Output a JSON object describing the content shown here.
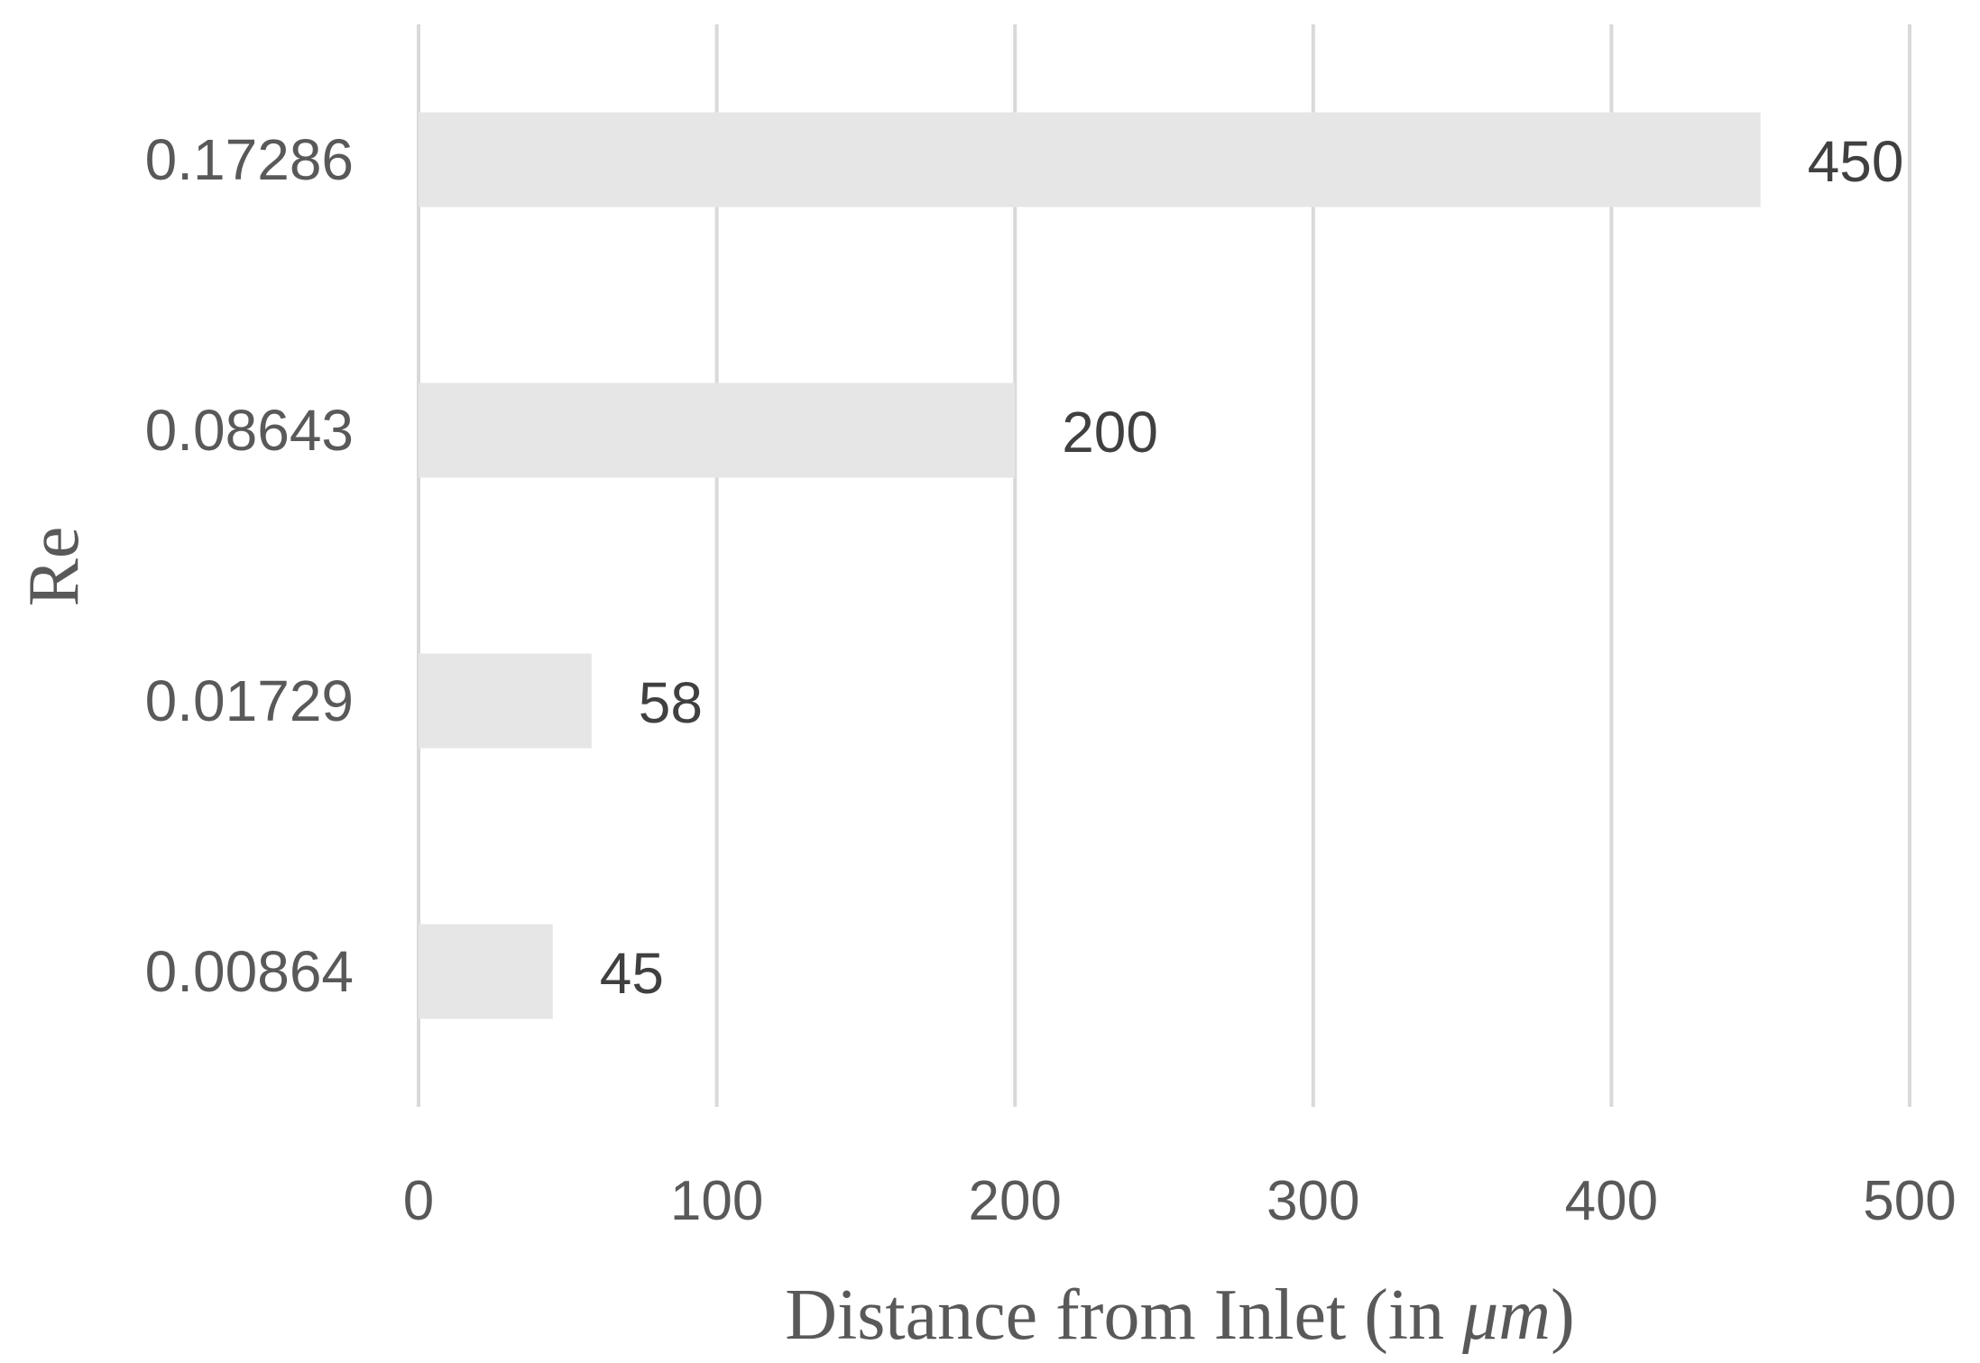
{
  "chart_data": {
    "type": "bar",
    "orientation": "horizontal",
    "categories": [
      "0.17286",
      "0.08643",
      "0.01729",
      "0.00864"
    ],
    "values": [
      450,
      200,
      58,
      45
    ],
    "data_labels": [
      "450",
      "200",
      "58",
      "45"
    ],
    "xlabel": "Distance from Inlet (in ",
    "xlabel_unit": "μm",
    "xlabel_close": ")",
    "ylabel": "Re",
    "xlim": [
      0,
      500
    ],
    "xticks": [
      0,
      100,
      200,
      300,
      400,
      500
    ],
    "xtick_labels": [
      "0",
      "100",
      "200",
      "300",
      "400",
      "500"
    ],
    "grid": "vertical",
    "legend": "none",
    "colors": {
      "bar": "#e6e6e6",
      "grid": "#d9d9d9",
      "text": "#595959",
      "data_label": "#404040"
    }
  }
}
